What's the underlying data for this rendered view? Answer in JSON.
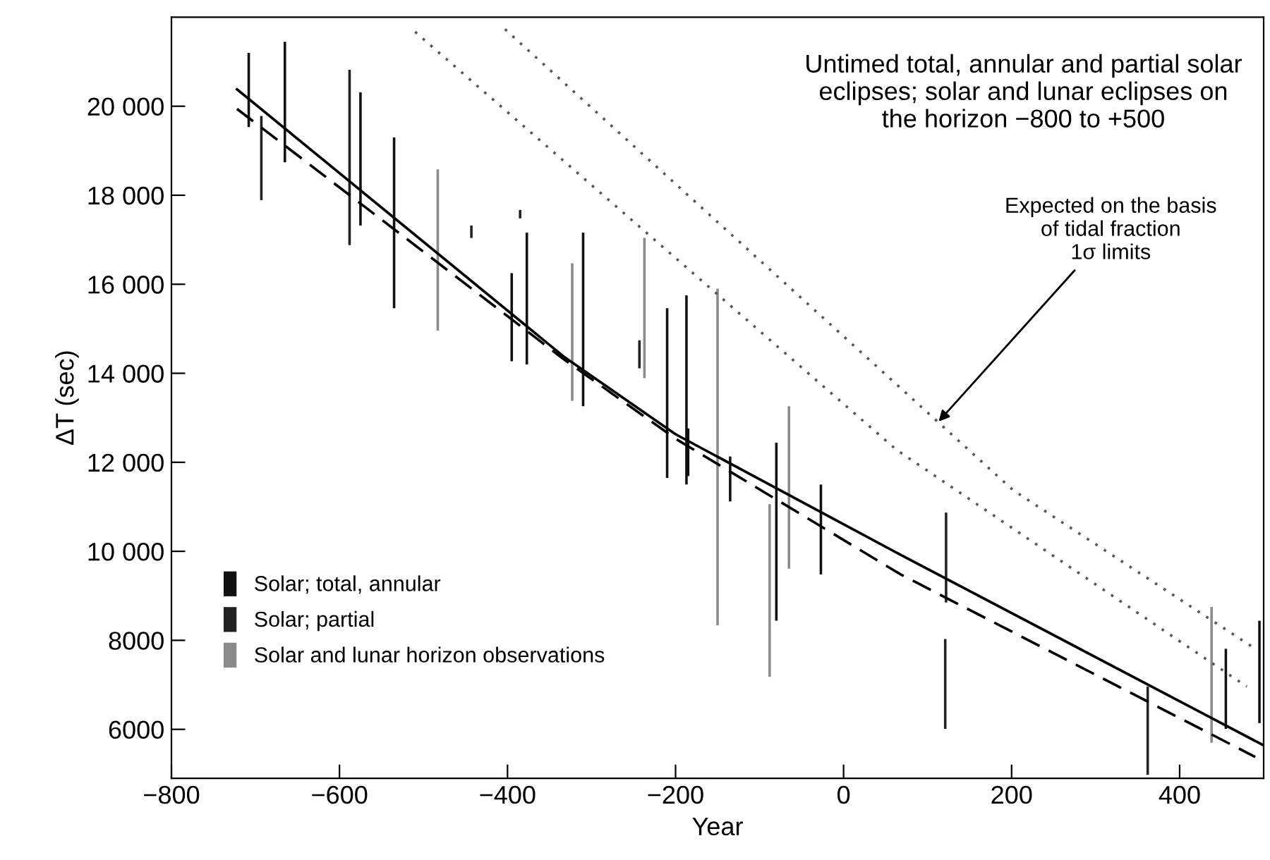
{
  "chart_data": {
    "type": "bar",
    "xlabel": "Year",
    "ylabel": "ΔT (sec)",
    "xlim": [
      -800,
      500
    ],
    "ylim": [
      4900,
      22000
    ],
    "xticks": [
      {
        "value": -800,
        "label": "−800"
      },
      {
        "value": -600,
        "label": "−600"
      },
      {
        "value": -400,
        "label": "−400"
      },
      {
        "value": -200,
        "label": "−200"
      },
      0,
      200,
      400
    ],
    "yticks": [
      6000,
      8000,
      {
        "value": 10000,
        "label": "10 000"
      },
      {
        "value": 12000,
        "label": "12 000"
      },
      {
        "value": 14000,
        "label": "14 000"
      },
      {
        "value": 16000,
        "label": "16 000"
      },
      {
        "value": 18000,
        "label": "18 000"
      },
      {
        "value": 20000,
        "label": "20 000"
      }
    ],
    "grid": false,
    "legend": "lower left",
    "annotations": [
      "Untimed total, annular and partial solar\neclipses; solar and lunar eclipses on\nthe horizon −800 to +500",
      {
        "text": "Expected on the basis\nof tidal fraction\n1σ limits",
        "x": 110,
        "y": 12850
      }
    ],
    "series": [
      {
        "name": "Solar; total, annular",
        "color": "#111111",
        "x": [
          -708,
          -665,
          -575,
          -535,
          -395,
          -377,
          -310,
          -210,
          -187,
          -185,
          -135,
          -80,
          -27,
          455,
          495
        ],
        "base": [
          19530,
          18740,
          17320,
          15460,
          14270,
          14200,
          13260,
          11650,
          11500,
          11690,
          11120,
          8440,
          9480,
          6010,
          6140
        ],
        "values": [
          1670,
          2710,
          2990,
          3840,
          1980,
          2960,
          3900,
          3810,
          4250,
          1070,
          1010,
          4000,
          2020,
          1800,
          2300
        ]
      },
      {
        "name": "Solar; partial",
        "color": "#222222",
        "x": [
          -693,
          -588,
          -443,
          -385,
          -243,
          121,
          122,
          362
        ],
        "base": [
          17890,
          16880,
          17040,
          17480,
          14110,
          6010,
          8850,
          4980
        ],
        "values": [
          1890,
          3940,
          280,
          190,
          630,
          2020,
          2020,
          1980
        ]
      },
      {
        "name": "Solar and lunar horizon observations",
        "color": "#8a8a8a",
        "x": [
          -483,
          -323,
          -237,
          -150,
          -88,
          -65,
          438
        ],
        "base": [
          14960,
          13380,
          13890,
          8340,
          7180,
          9610,
          5700
        ],
        "values": [
          3620,
          3090,
          3150,
          7560,
          3880,
          3650,
          3050
        ]
      },
      {
        "type": "line",
        "line_style": "solid",
        "color": "#000000",
        "x": [
          -722,
          -332,
          -200,
          68,
          500
        ],
        "values": [
          20380,
          14360,
          12630,
          9920,
          5640
        ]
      },
      {
        "type": "line",
        "line_style": "dashed",
        "color": "#000000",
        "x": [
          -722,
          -332,
          -200,
          68,
          490
        ],
        "values": [
          19940,
          14300,
          12530,
          9480,
          5380
        ]
      },
      {
        "type": "line",
        "line_style": "dotted",
        "color": "#555555",
        "x": [
          -510,
          63,
          480
        ],
        "values": [
          21670,
          12280,
          6960
        ]
      },
      {
        "type": "line",
        "line_style": "dotted",
        "color": "#555555",
        "x": [
          -403,
          202,
          490
        ],
        "values": [
          21730,
          11370,
          7810
        ]
      }
    ]
  }
}
